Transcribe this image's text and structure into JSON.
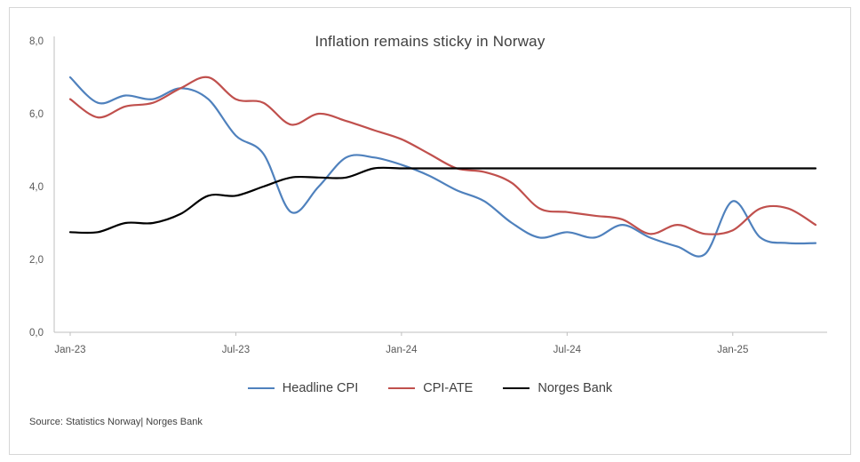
{
  "chart_data": {
    "type": "line",
    "title": "Inflation remains sticky in Norway",
    "smooth": true,
    "grid": false,
    "legend_position": "bottom",
    "ylim": [
      0,
      8
    ],
    "y_tick_values": [
      0,
      2,
      4,
      6,
      8
    ],
    "y_tick_labels": [
      "0,0",
      "2,0",
      "4,0",
      "6,0",
      "8,0"
    ],
    "categories": [
      "Jan-23",
      "Feb-23",
      "Mar-23",
      "Apr-23",
      "May-23",
      "Jun-23",
      "Jul-23",
      "Aug-23",
      "Sep-23",
      "Oct-23",
      "Nov-23",
      "Dec-23",
      "Jan-24",
      "Feb-24",
      "Mar-24",
      "Apr-24",
      "May-24",
      "Jun-24",
      "Jul-24",
      "Aug-24",
      "Sep-24",
      "Oct-24",
      "Nov-24",
      "Dec-24",
      "Jan-25",
      "Feb-25",
      "Mar-25",
      "Apr-25"
    ],
    "x_tick_indices": [
      0,
      6,
      12,
      18,
      24
    ],
    "x_tick_labels": [
      "Jan-23",
      "Jul-23",
      "Jan-24",
      "Jul-24",
      "Jan-25"
    ],
    "axis_color": "#bfbfbf",
    "axis_label_color": "#595959",
    "series": [
      {
        "name": "Headline CPI",
        "color": "#4f81bd",
        "values": [
          7.0,
          6.3,
          6.5,
          6.4,
          6.7,
          6.4,
          5.4,
          4.9,
          3.3,
          4.0,
          4.8,
          4.8,
          4.6,
          4.3,
          3.9,
          3.6,
          3.0,
          2.6,
          2.75,
          2.6,
          2.95,
          2.6,
          2.35,
          2.15,
          3.6,
          2.6,
          2.45,
          2.45
        ]
      },
      {
        "name": "CPI-ATE",
        "color": "#c0504d",
        "values": [
          6.4,
          5.9,
          6.2,
          6.3,
          6.7,
          7.0,
          6.4,
          6.3,
          5.7,
          6.0,
          5.8,
          5.55,
          5.3,
          4.9,
          4.5,
          4.4,
          4.1,
          3.4,
          3.3,
          3.2,
          3.1,
          2.7,
          2.95,
          2.7,
          2.8,
          3.4,
          3.4,
          2.95
        ]
      },
      {
        "name": "Norges Bank",
        "color": "#000000",
        "values": [
          2.75,
          2.75,
          3.0,
          3.0,
          3.25,
          3.75,
          3.75,
          4.0,
          4.25,
          4.25,
          4.25,
          4.5,
          4.5,
          4.5,
          4.5,
          4.5,
          4.5,
          4.5,
          4.5,
          4.5,
          4.5,
          4.5,
          4.5,
          4.5,
          4.5,
          4.5,
          4.5,
          4.5
        ]
      }
    ]
  },
  "source": {
    "text": "Source: Statistics Norway| Norges Bank"
  }
}
